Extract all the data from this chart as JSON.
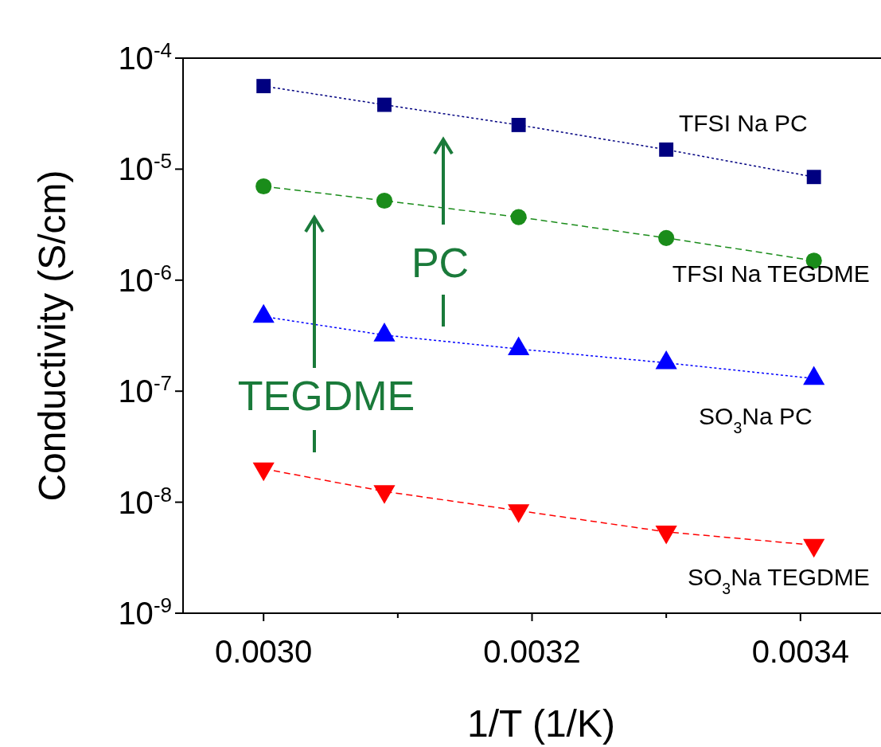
{
  "chart_data": {
    "type": "line",
    "xlabel": "1/T (1/K)",
    "ylabel": "Conductivity (S/cm)",
    "log": "y",
    "legend": false,
    "grid": false,
    "xlim": [
      0.00294,
      0.00346
    ],
    "ylim": [
      1e-09,
      0.0001
    ],
    "xticks": [
      {
        "value": 0.003,
        "label": "0.0030"
      },
      {
        "value": 0.0031,
        "label": null
      },
      {
        "value": 0.0032,
        "label": "0.0032"
      },
      {
        "value": 0.0033,
        "label": null
      },
      {
        "value": 0.0034,
        "label": "0.0034"
      }
    ],
    "yticks": [
      {
        "value": 1e-09,
        "label": "10$^{-9}$"
      },
      {
        "value": 1e-08,
        "label": "10$^{-8}$"
      },
      {
        "value": 1e-07,
        "label": "10$^{-7}$"
      },
      {
        "value": 1e-06,
        "label": "10$^{-6}$"
      },
      {
        "value": 1e-05,
        "label": "10$^{-5}$"
      },
      {
        "value": 0.0001,
        "label": "10$^{-4}$"
      }
    ],
    "x": [
      0.003,
      0.00309,
      0.00319,
      0.0033,
      0.00341
    ],
    "series": [
      {
        "name": "TFSI Na PC",
        "color": "#000080",
        "marker": "square",
        "line_style": "dotted",
        "values": [
          5.6e-05,
          3.8e-05,
          2.5e-05,
          1.5e-05,
          8.5e-06
        ]
      },
      {
        "name": "TFSI Na TEGDME",
        "color": "#1a8c1a",
        "marker": "circle",
        "line_style": "dashed",
        "values": [
          7e-06,
          5.2e-06,
          3.7e-06,
          2.4e-06,
          1.5e-06
        ]
      },
      {
        "name": "SO$_{3}$Na PC",
        "color": "#0000ff",
        "marker": "triangle",
        "line_style": "dotted",
        "values": [
          4.7e-07,
          3.2e-07,
          2.4e-07,
          1.8e-07,
          1.3e-07
        ]
      },
      {
        "name": "SO$_{3}$Na TEGDME",
        "color": "#ff0000",
        "marker": "triangle-down",
        "line_style": "dashed",
        "values": [
          2e-08,
          1.25e-08,
          8.4e-09,
          5.4e-09,
          4.1e-09
        ]
      }
    ],
    "annotations": [
      "PC",
      "TEGDME"
    ]
  }
}
